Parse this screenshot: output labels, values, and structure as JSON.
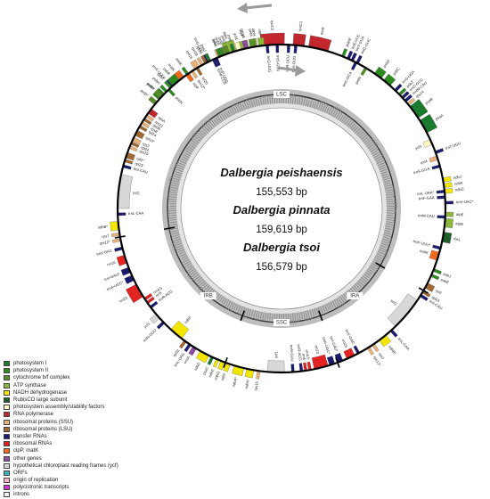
{
  "center": {
    "species": [
      {
        "name": "Dalbergia peishaensis",
        "size": "155,553 bp"
      },
      {
        "name": "Dalbergia pinnata",
        "size": "159,619 bp"
      },
      {
        "name": "Dalbergia tsoi",
        "size": "156,579 bp"
      }
    ]
  },
  "regions": [
    {
      "label": "LSC",
      "angle": 0
    },
    {
      "label": "IRA",
      "angle": 140
    },
    {
      "label": "SSC",
      "angle": 180
    },
    {
      "label": "IRB",
      "angle": 220
    }
  ],
  "legend": [
    {
      "label": "photosystem I",
      "color": "#1a7a2e"
    },
    {
      "label": "photosystem II",
      "color": "#2d8a1f"
    },
    {
      "label": "cytochrome b/f complex",
      "color": "#5b8c2a"
    },
    {
      "label": "ATP synthase",
      "color": "#8db53c"
    },
    {
      "label": "NADH dehydrogenase",
      "color": "#f2e600"
    },
    {
      "label": "RubisCO large subunit",
      "color": "#1f5f2a"
    },
    {
      "label": "photosystem assembly/stability factors",
      "color": "#fbf7c0"
    },
    {
      "label": "RNA polymerase",
      "color": "#c2272d"
    },
    {
      "label": "ribosomal proteins (SSU)",
      "color": "#e8b27a"
    },
    {
      "label": "ribosomal proteins (LSU)",
      "color": "#a0692f"
    },
    {
      "label": "transfer RNAs",
      "color": "#1a1a6e"
    },
    {
      "label": "ribosomal RNAs",
      "color": "#e32222"
    },
    {
      "label": "clpP, matK",
      "color": "#ee6a1c"
    },
    {
      "label": "other genes",
      "color": "#8a4ba3"
    },
    {
      "label": "hypothetical chloroplast reading frames (ycf)",
      "color": "#d8d8d8"
    },
    {
      "label": "ORFs",
      "color": "#3bb3b3"
    },
    {
      "label": "origin of replication",
      "color": "#ffb3c8"
    },
    {
      "label": "polycistronic transcripts",
      "color": "#cc33cc"
    },
    {
      "label": "introns",
      "color": "#f2f2f2"
    }
  ],
  "genes": [
    {
      "label": "rpoC2",
      "angle": 357,
      "span": 8,
      "side": "out",
      "color": "#c2272d"
    },
    {
      "label": "rpoC1",
      "angle": 6,
      "span": 4,
      "side": "out",
      "color": "#c2272d"
    },
    {
      "label": "rpoB",
      "angle": 13,
      "span": 7,
      "side": "out",
      "color": "#c2272d"
    },
    {
      "label": "atpA",
      "angle": 342,
      "span": 4,
      "side": "out",
      "color": "#8db53c"
    },
    {
      "label": "atpF*",
      "angle": 347,
      "span": 3,
      "side": "out",
      "color": "#8db53c"
    },
    {
      "label": "atpH",
      "angle": 351,
      "span": 1,
      "side": "out",
      "color": "#8db53c"
    },
    {
      "label": "atpI",
      "angle": 353,
      "span": 2,
      "side": "out",
      "color": "#8db53c"
    },
    {
      "label": "rps2",
      "angle": 338,
      "span": 2,
      "side": "out",
      "color": "#e8b27a"
    },
    {
      "label": "trnG-UCC",
      "angle": 333,
      "span": 1,
      "side": "out",
      "color": "#1a1a6e"
    },
    {
      "label": "rps16",
      "angle": 329,
      "span": 2,
      "side": "out",
      "color": "#e8b27a"
    },
    {
      "label": "psbK",
      "angle": 325,
      "span": 1,
      "side": "out",
      "color": "#2d8a1f"
    },
    {
      "label": "matK",
      "angle": 322,
      "span": 3,
      "side": "out",
      "color": "#ee6a1c"
    },
    {
      "label": "trnK-UUU*",
      "angle": 318,
      "span": 1,
      "side": "out",
      "color": "#1a1a6e"
    },
    {
      "label": "psbA",
      "angle": 313,
      "span": 3,
      "side": "out",
      "color": "#2d8a1f"
    },
    {
      "label": "trnC-GCA",
      "angle": 27,
      "span": 1,
      "side": "in",
      "color": "#1a1a6e"
    },
    {
      "label": "petN",
      "angle": 31,
      "span": 1,
      "side": "in",
      "color": "#5b8c2a"
    },
    {
      "label": "trnE-UUC",
      "angle": 24,
      "span": 1,
      "side": "out",
      "color": "#1a1a6e"
    },
    {
      "label": "trnY-GUA",
      "angle": 25.5,
      "span": 1,
      "side": "out",
      "color": "#1a1a6e"
    },
    {
      "label": "trnD-GUC",
      "angle": 27.5,
      "span": 1,
      "side": "out",
      "color": "#1a1a6e"
    },
    {
      "label": "psbM",
      "angle": 22,
      "span": 1,
      "side": "out",
      "color": "#2d8a1f"
    },
    {
      "label": "psbD",
      "angle": 36,
      "span": 3,
      "side": "out",
      "color": "#2d8a1f"
    },
    {
      "label": "psbC",
      "angle": 40,
      "span": 3,
      "side": "out",
      "color": "#2d8a1f"
    },
    {
      "label": "trnS-UGA",
      "angle": 44,
      "span": 1,
      "side": "out",
      "color": "#1a1a6e"
    },
    {
      "label": "psbZ",
      "angle": 46,
      "span": 1,
      "side": "out",
      "color": "#2d8a1f"
    },
    {
      "label": "trnG-GCC",
      "angle": 47.5,
      "span": 1,
      "side": "out",
      "color": "#1a1a6e"
    },
    {
      "label": "trnfM-CAU",
      "angle": 49,
      "span": 1,
      "side": "out",
      "color": "#1a1a6e"
    },
    {
      "label": "rps14",
      "angle": 50.5,
      "span": 1,
      "side": "out",
      "color": "#e8b27a"
    },
    {
      "label": "psaB",
      "angle": 54,
      "span": 5,
      "side": "out",
      "color": "#1a7a2e"
    },
    {
      "label": "psaA",
      "angle": 60,
      "span": 5,
      "side": "out",
      "color": "#1a7a2e"
    },
    {
      "label": "ycf3",
      "angle": 66,
      "span": 2,
      "side": "in",
      "color": "#fbf7c0"
    },
    {
      "label": "trnS-GGA",
      "angle": 75,
      "span": 1,
      "side": "in",
      "color": "#1a1a6e"
    },
    {
      "label": "rps4",
      "angle": 72,
      "span": 1.5,
      "side": "in",
      "color": "#e8b27a"
    },
    {
      "label": "trnT-UGU",
      "angle": 70,
      "span": 1,
      "side": "out",
      "color": "#1a1a6e"
    },
    {
      "label": "ndhJ",
      "angle": 80,
      "span": 1.5,
      "side": "out",
      "color": "#f2e600"
    },
    {
      "label": "ndhK",
      "angle": 82,
      "span": 1.5,
      "side": "out",
      "color": "#f2e600"
    },
    {
      "label": "ndhC",
      "angle": 84,
      "span": 1.5,
      "side": "out",
      "color": "#f2e600"
    },
    {
      "label": "trnV-UAC*",
      "angle": 88,
      "span": 1,
      "side": "out",
      "color": "#1a1a6e"
    },
    {
      "label": "trnF-GAA",
      "angle": 86,
      "span": 1,
      "side": "in",
      "color": "#1a1a6e"
    },
    {
      "label": "trnL-UAA*",
      "angle": 84,
      "span": 1,
      "side": "in",
      "color": "#1a1a6e"
    },
    {
      "label": "atpE",
      "angle": 92,
      "span": 1.5,
      "side": "out",
      "color": "#8db53c"
    },
    {
      "label": "atpB",
      "angle": 95,
      "span": 3,
      "side": "out",
      "color": "#8db53c"
    },
    {
      "label": "trnM-CAU",
      "angle": 93,
      "span": 1,
      "side": "in",
      "color": "#1a1a6e"
    },
    {
      "label": "rbcL",
      "angle": 100,
      "span": 3.5,
      "side": "out",
      "color": "#1f5f2a"
    },
    {
      "label": "trnK-UUU*",
      "angle": 104,
      "span": 1,
      "side": "in",
      "color": "#1a1a6e"
    },
    {
      "label": "matK",
      "angle": 107,
      "span": 3,
      "side": "in",
      "color": "#ee6a1c"
    },
    {
      "label": "psbJ",
      "angle": 112,
      "span": 1,
      "side": "out",
      "color": "#2d8a1f"
    },
    {
      "label": "psbE",
      "angle": 114,
      "span": 1,
      "side": "out",
      "color": "#2d8a1f"
    },
    {
      "label": "rpl2",
      "angle": 118,
      "span": 2,
      "side": "out",
      "color": "#a0692f"
    },
    {
      "label": "rpl23",
      "angle": 120.5,
      "span": 1,
      "side": "out",
      "color": "#a0692f"
    },
    {
      "label": "trnI-CAU",
      "angle": 122,
      "span": 1,
      "side": "out",
      "color": "#1a1a6e"
    },
    {
      "label": "ycf2",
      "angle": 130,
      "span": 12,
      "side": "in",
      "color": "#d8d8d8"
    },
    {
      "label": "trnL-CAA",
      "angle": 138,
      "span": 1,
      "side": "out",
      "color": "#1a1a6e"
    },
    {
      "label": "ndhB*",
      "angle": 142,
      "span": 3,
      "side": "out",
      "color": "#f2e600"
    },
    {
      "label": "rps7",
      "angle": 146,
      "span": 1,
      "side": "out",
      "color": "#e8b27a"
    },
    {
      "label": "rps12*",
      "angle": 148,
      "span": 1,
      "side": "out",
      "color": "#e8b27a"
    },
    {
      "label": "trnV-GAC",
      "angle": 152,
      "span": 1,
      "side": "in",
      "color": "#1a1a6e"
    },
    {
      "label": "rrn16",
      "angle": 155,
      "span": 3,
      "side": "in",
      "color": "#e32222"
    },
    {
      "label": "trnI-GAU*",
      "angle": 159,
      "span": 2,
      "side": "in",
      "color": "#1a1a6e"
    },
    {
      "label": "trnA-UGC*",
      "angle": 162,
      "span": 2,
      "side": "in",
      "color": "#1a1a6e"
    },
    {
      "label": "rrn23",
      "angle": 166,
      "span": 5,
      "side": "in",
      "color": "#e32222"
    },
    {
      "label": "rrn4.5",
      "angle": 170,
      "span": 1,
      "side": "in",
      "color": "#e32222"
    },
    {
      "label": "rrn5",
      "angle": 171.5,
      "span": 1,
      "side": "in",
      "color": "#e32222"
    },
    {
      "label": "trnR-ACG",
      "angle": 173,
      "span": 1,
      "side": "in",
      "color": "#1a1a6e"
    },
    {
      "label": "trnN-GUU",
      "angle": 176,
      "span": 1,
      "side": "in",
      "color": "#1a1a6e"
    },
    {
      "label": "ycf1",
      "angle": 182,
      "span": 6,
      "side": "in",
      "color": "#d8d8d8"
    },
    {
      "label": "rps15",
      "angle": 188,
      "span": 1,
      "side": "out",
      "color": "#e8b27a"
    },
    {
      "label": "ndhH",
      "angle": 191,
      "span": 2.5,
      "side": "out",
      "color": "#f2e600"
    },
    {
      "label": "ndhA*",
      "angle": 195,
      "span": 3.5,
      "side": "out",
      "color": "#f2e600"
    },
    {
      "label": "ndhI",
      "angle": 199,
      "span": 1.5,
      "side": "out",
      "color": "#f2e600"
    },
    {
      "label": "ndhG",
      "angle": 201,
      "span": 1.5,
      "side": "out",
      "color": "#f2e600"
    },
    {
      "label": "ndhE",
      "angle": 203,
      "span": 1,
      "side": "out",
      "color": "#f2e600"
    },
    {
      "label": "psaC",
      "angle": 205,
      "span": 1,
      "side": "out",
      "color": "#1a7a2e"
    },
    {
      "label": "ndhD",
      "angle": 208,
      "span": 3.5,
      "side": "out",
      "color": "#f2e600"
    },
    {
      "label": "ccsA",
      "angle": 212,
      "span": 1.5,
      "side": "out",
      "color": "#8a4ba3"
    },
    {
      "label": "trnL-UAG",
      "angle": 214,
      "span": 1,
      "side": "out",
      "color": "#1a1a6e"
    },
    {
      "label": "rpl32",
      "angle": 216,
      "span": 1,
      "side": "out",
      "color": "#a0692f"
    },
    {
      "label": "ndhF",
      "angle": 220,
      "span": 5,
      "side": "in",
      "color": "#f2e600"
    },
    {
      "label": "trnN-GUU",
      "angle": 226,
      "span": 1,
      "side": "out",
      "color": "#1a1a6e"
    },
    {
      "label": "ycf1",
      "angle": 229,
      "span": 2,
      "side": "out",
      "color": "#d8d8d8"
    },
    {
      "label": "trnR-ACG",
      "angle": 233,
      "span": 1,
      "side": "in",
      "color": "#1a1a6e"
    },
    {
      "label": "rrn5",
      "angle": 235,
      "span": 1,
      "side": "in",
      "color": "#e32222"
    },
    {
      "label": "rrn4.5",
      "angle": 236.5,
      "span": 1,
      "side": "in",
      "color": "#e32222"
    },
    {
      "label": "rrn23",
      "angle": 240,
      "span": 5,
      "side": "out",
      "color": "#e32222"
    },
    {
      "label": "trnA-UGC*",
      "angle": 245,
      "span": 2,
      "side": "out",
      "color": "#1a1a6e"
    },
    {
      "label": "trnI-GAU*",
      "angle": 248,
      "span": 2,
      "side": "out",
      "color": "#1a1a6e"
    },
    {
      "label": "rrn16",
      "angle": 252,
      "span": 3,
      "side": "out",
      "color": "#e32222"
    },
    {
      "label": "trnV-GAC",
      "angle": 256,
      "span": 1,
      "side": "out",
      "color": "#1a1a6e"
    },
    {
      "label": "rps12*",
      "angle": 259,
      "span": 1,
      "side": "out",
      "color": "#e8b27a"
    },
    {
      "label": "rps7",
      "angle": 261,
      "span": 1,
      "side": "out",
      "color": "#e8b27a"
    },
    {
      "label": "ndhB*",
      "angle": 264,
      "span": 3,
      "side": "out",
      "color": "#f2e600"
    },
    {
      "label": "trnL-CAA",
      "angle": 268,
      "span": 1,
      "side": "in",
      "color": "#1a1a6e"
    },
    {
      "label": "ycf2",
      "angle": 276,
      "span": 12,
      "side": "in",
      "color": "#d8d8d8"
    },
    {
      "label": "trnI-CAU",
      "angle": 285,
      "span": 1,
      "side": "in",
      "color": "#1a1a6e"
    },
    {
      "label": "rpl23",
      "angle": 287,
      "span": 1,
      "side": "in",
      "color": "#a0692f"
    },
    {
      "label": "rpl2*",
      "angle": 289,
      "span": 2,
      "side": "in",
      "color": "#a0692f"
    },
    {
      "label": "rps19",
      "angle": 292,
      "span": 1,
      "side": "in",
      "color": "#e8b27a"
    },
    {
      "label": "rpl22",
      "angle": 293.5,
      "span": 1,
      "side": "in",
      "color": "#a0692f"
    },
    {
      "label": "rps3",
      "angle": 295,
      "span": 1.5,
      "side": "in",
      "color": "#e8b27a"
    },
    {
      "label": "rpl16*",
      "angle": 297.5,
      "span": 2,
      "side": "in",
      "color": "#a0692f"
    },
    {
      "label": "rpl14",
      "angle": 300,
      "span": 1,
      "side": "in",
      "color": "#a0692f"
    },
    {
      "label": "rps8",
      "angle": 301.5,
      "span": 1,
      "side": "in",
      "color": "#e8b27a"
    },
    {
      "label": "rpl36",
      "angle": 303,
      "span": 1,
      "side": "in",
      "color": "#a0692f"
    },
    {
      "label": "rps11",
      "angle": 304.5,
      "span": 1,
      "side": "in",
      "color": "#e8b27a"
    },
    {
      "label": "rpoA",
      "angle": 306.5,
      "span": 2,
      "side": "in",
      "color": "#c2272d"
    },
    {
      "label": "petD*",
      "angle": 310,
      "span": 1.5,
      "side": "out",
      "color": "#5b8c2a"
    },
    {
      "label": "petB*",
      "angle": 313,
      "span": 1.5,
      "side": "out",
      "color": "#5b8c2a"
    },
    {
      "label": "psbH",
      "angle": 315.5,
      "span": 1,
      "side": "out",
      "color": "#2d8a1f"
    },
    {
      "label": "psbN",
      "angle": 316.5,
      "span": 1,
      "side": "in",
      "color": "#2d8a1f"
    },
    {
      "label": "psbT",
      "angle": 317.5,
      "span": 1,
      "side": "out",
      "color": "#2d8a1f"
    },
    {
      "label": "psbB",
      "angle": 320,
      "span": 3,
      "side": "out",
      "color": "#2d8a1f"
    },
    {
      "label": "clpP",
      "angle": 325,
      "span": 1.5,
      "side": "in",
      "color": "#ee6a1c"
    },
    {
      "label": "rps12*",
      "angle": 327,
      "span": 1,
      "side": "in",
      "color": "#e8b27a"
    },
    {
      "label": "rpl20",
      "angle": 329,
      "span": 1,
      "side": "in",
      "color": "#a0692f"
    },
    {
      "label": "rps18",
      "angle": 331,
      "span": 1,
      "side": "out",
      "color": "#e8b27a"
    },
    {
      "label": "rpl33",
      "angle": 332.5,
      "span": 1,
      "side": "out",
      "color": "#a0692f"
    },
    {
      "label": "psaJ",
      "angle": 334,
      "span": 1,
      "side": "out",
      "color": "#1a7a2e"
    },
    {
      "label": "trnW-CCA",
      "angle": 335.5,
      "span": 1,
      "side": "in",
      "color": "#1a1a6e"
    },
    {
      "label": "trnP-UGG",
      "angle": 336.5,
      "span": 1,
      "side": "in",
      "color": "#1a1a6e"
    },
    {
      "label": "psbL",
      "angle": 338,
      "span": 1,
      "side": "out",
      "color": "#2d8a1f"
    },
    {
      "label": "psbF",
      "angle": 339,
      "span": 1,
      "side": "out",
      "color": "#2d8a1f"
    },
    {
      "label": "petL",
      "angle": 340,
      "span": 1,
      "side": "out",
      "color": "#5b8c2a"
    },
    {
      "label": "petG",
      "angle": 341,
      "span": 1,
      "side": "out",
      "color": "#5b8c2a"
    },
    {
      "label": "psaI",
      "angle": 343,
      "span": 1,
      "side": "out",
      "color": "#1a7a2e"
    },
    {
      "label": "ycf4",
      "angle": 345,
      "span": 1.5,
      "side": "out",
      "color": "#fbf7c0"
    },
    {
      "label": "cemA",
      "angle": 347.5,
      "span": 1.5,
      "side": "out",
      "color": "#8a4ba3"
    },
    {
      "label": "petA",
      "angle": 350,
      "span": 2,
      "side": "out",
      "color": "#5b8c2a"
    },
    {
      "label": "trnQ-UUG",
      "angle": 355,
      "span": 1,
      "side": "in",
      "color": "#1a1a6e"
    },
    {
      "label": "trnS-GCU",
      "angle": 358.5,
      "span": 1,
      "side": "in",
      "color": "#1a1a6e"
    },
    {
      "label": "trnR-UCU",
      "angle": 2.5,
      "span": 1,
      "side": "in",
      "color": "#1a1a6e"
    },
    {
      "label": "trnH-GUG",
      "angle": 5,
      "span": 1,
      "side": "in",
      "color": "#1a1a6e"
    }
  ]
}
